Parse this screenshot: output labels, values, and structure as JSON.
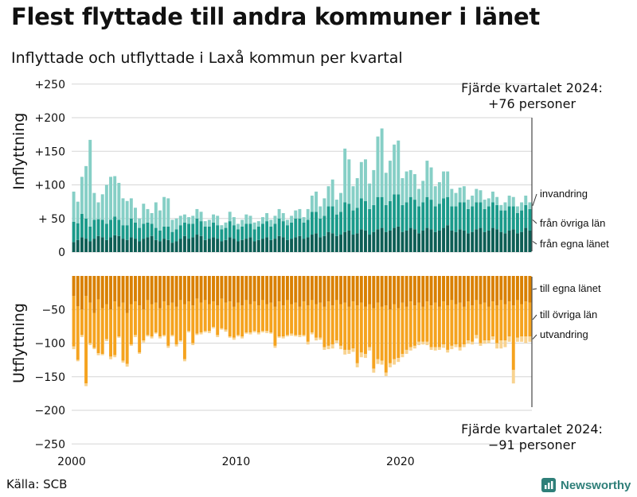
{
  "title": "Flest flyttade till andra kommuner i länet",
  "subtitle": "Inflyttade och utflyttade i Laxå kommun per kvartal",
  "source": "Källa: SCB",
  "brand": "Newsworthy",
  "chart_data": {
    "type": "bar",
    "stacked": true,
    "x_start": 2000,
    "x_interval": "quarter",
    "ylim": [
      -250,
      250
    ],
    "yticks": [
      250,
      200,
      150,
      100,
      50,
      0,
      -50,
      -100,
      -150,
      -200,
      -250
    ],
    "ytick_labels": [
      "+250",
      "+200",
      "+150",
      "+100",
      "+ 50",
      "0",
      "−50",
      "−100",
      "−150",
      "−200",
      "−250"
    ],
    "xticks": [
      2000,
      2010,
      2020
    ],
    "ylabel_top": "Inflyttning",
    "ylabel_bottom": "Utflyttning",
    "annotation_top": [
      "Fjärde kvartalet 2024:",
      "+76 personer"
    ],
    "annotation_bottom": [
      "Fjärde kvartalet 2024:",
      "−91 personer"
    ],
    "in_series": [
      {
        "name": "från egna länet",
        "color": "#0d5e55",
        "values": [
          15,
          18,
          22,
          20,
          16,
          20,
          24,
          22,
          18,
          22,
          25,
          24,
          20,
          18,
          22,
          20,
          16,
          20,
          22,
          24,
          18,
          16,
          20,
          18,
          14,
          16,
          20,
          24,
          20,
          22,
          26,
          24,
          18,
          20,
          22,
          20,
          16,
          18,
          22,
          20,
          16,
          18,
          20,
          22,
          16,
          18,
          20,
          22,
          18,
          20,
          24,
          22,
          18,
          20,
          22,
          24,
          20,
          22,
          26,
          28,
          22,
          24,
          30,
          28,
          24,
          26,
          30,
          32,
          26,
          28,
          34,
          32,
          26,
          30,
          34,
          36,
          30,
          32,
          36,
          38,
          30,
          32,
          36,
          34,
          28,
          32,
          36,
          34,
          30,
          32,
          36,
          40,
          32,
          30,
          34,
          32,
          28,
          30,
          34,
          36,
          30,
          32,
          36,
          34,
          30,
          28,
          32,
          34,
          28,
          30,
          36,
          32
        ]
      },
      {
        "name": "från övriga län",
        "color": "#1a9a8a",
        "values": [
          30,
          25,
          35,
          30,
          22,
          28,
          25,
          26,
          24,
          26,
          28,
          24,
          20,
          22,
          28,
          24,
          20,
          22,
          22,
          18,
          18,
          16,
          18,
          20,
          16,
          18,
          20,
          20,
          22,
          20,
          24,
          22,
          20,
          18,
          22,
          20,
          18,
          18,
          24,
          20,
          18,
          20,
          22,
          20,
          18,
          20,
          22,
          24,
          20,
          22,
          26,
          24,
          22,
          24,
          28,
          26,
          24,
          26,
          34,
          32,
          28,
          30,
          38,
          40,
          32,
          34,
          44,
          40,
          36,
          38,
          46,
          44,
          38,
          40,
          48,
          46,
          40,
          44,
          50,
          48,
          40,
          42,
          46,
          44,
          40,
          42,
          46,
          44,
          38,
          40,
          44,
          42,
          36,
          38,
          40,
          42,
          36,
          38,
          40,
          38,
          34,
          36,
          38,
          36,
          32,
          34,
          36,
          34,
          30,
          32,
          34,
          32
        ]
      },
      {
        "name": "invandring",
        "color": "#86cfc6",
        "values": [
          45,
          32,
          55,
          78,
          129,
          40,
          25,
          38,
          58,
          64,
          60,
          55,
          40,
          36,
          30,
          22,
          14,
          30,
          20,
          16,
          38,
          30,
          44,
          42,
          18,
          16,
          14,
          12,
          10,
          12,
          14,
          14,
          8,
          10,
          12,
          14,
          6,
          8,
          14,
          12,
          8,
          10,
          14,
          12,
          10,
          8,
          10,
          12,
          10,
          12,
          14,
          12,
          8,
          10,
          12,
          14,
          8,
          16,
          24,
          30,
          18,
          26,
          30,
          40,
          22,
          28,
          80,
          66,
          36,
          44,
          54,
          62,
          38,
          52,
          90,
          102,
          48,
          60,
          74,
          80,
          40,
          46,
          40,
          38,
          26,
          32,
          54,
          48,
          30,
          32,
          40,
          38,
          26,
          20,
          22,
          24,
          14,
          16,
          20,
          18,
          14,
          12,
          16,
          12,
          8,
          12,
          16,
          14,
          10,
          12,
          14,
          10
        ]
      }
    ],
    "out_series": [
      {
        "name": "till egna länet",
        "color": "#d98000",
        "values": [
          30,
          45,
          50,
          30,
          40,
          55,
          35,
          48,
          42,
          50,
          38,
          46,
          40,
          55,
          42,
          38,
          44,
          50,
          36,
          42,
          40,
          48,
          38,
          44,
          40,
          46,
          36,
          42,
          38,
          44,
          34,
          40,
          36,
          42,
          38,
          44,
          34,
          40,
          38,
          46,
          40,
          44,
          36,
          42,
          38,
          44,
          36,
          42,
          40,
          46,
          38,
          44,
          36,
          42,
          40,
          46,
          38,
          44,
          36,
          42,
          40,
          46,
          38,
          44,
          36,
          42,
          40,
          46,
          38,
          44,
          40,
          46,
          42,
          48,
          40,
          46,
          44,
          50,
          42,
          48,
          40,
          46,
          38,
          44,
          40,
          46,
          38,
          44,
          40,
          46,
          38,
          44,
          36,
          42,
          40,
          46,
          38,
          44,
          36,
          42,
          40,
          46,
          38,
          44,
          36,
          42,
          38,
          44,
          36,
          42,
          38,
          40
        ]
      },
      {
        "name": "till övriga län",
        "color": "#f5a31f",
        "values": [
          75,
          80,
          38,
          130,
          60,
          52,
          80,
          68,
          52,
          70,
          80,
          44,
          86,
          76,
          60,
          50,
          70,
          46,
          52,
          48,
          44,
          42,
          50,
          60,
          48,
          56,
          60,
          82,
          44,
          56,
          52,
          44,
          46,
          40,
          38,
          44,
          44,
          40,
          52,
          46,
          48,
          46,
          48,
          42,
          44,
          40,
          46,
          40,
          44,
          58,
          52,
          46,
          52,
          44,
          48,
          42,
          50,
          54,
          48,
          50,
          52,
          60,
          66,
          58,
          60,
          62,
          70,
          64,
          70,
          86,
          74,
          70,
          64,
          90,
          84,
          80,
          100,
          80,
          82,
          74,
          76,
          64,
          68,
          60,
          58,
          52,
          60,
          62,
          66,
          60,
          64,
          66,
          68,
          60,
          66,
          56,
          58,
          54,
          52,
          58,
          56,
          50,
          52,
          56,
          60,
          54,
          52,
          96,
          56,
          48,
          52,
          50
        ]
      },
      {
        "name": "utvandring",
        "color": "#f8d390",
        "values": [
          4,
          2,
          3,
          4,
          3,
          2,
          3,
          2,
          3,
          4,
          3,
          2,
          3,
          4,
          2,
          3,
          2,
          3,
          2,
          3,
          2,
          3,
          2,
          3,
          2,
          3,
          2,
          3,
          2,
          3,
          2,
          3,
          2,
          3,
          2,
          3,
          2,
          3,
          2,
          3,
          2,
          3,
          2,
          3,
          2,
          3,
          2,
          3,
          2,
          3,
          2,
          3,
          2,
          3,
          2,
          3,
          2,
          4,
          3,
          4,
          3,
          4,
          5,
          6,
          4,
          5,
          7,
          6,
          5,
          6,
          7,
          6,
          5,
          6,
          7,
          6,
          5,
          6,
          8,
          6,
          5,
          6,
          5,
          4,
          5,
          4,
          5,
          4,
          5,
          4,
          5,
          4,
          5,
          4,
          5,
          4,
          5,
          4,
          5,
          4,
          5,
          4,
          5,
          8,
          12,
          10,
          8,
          20,
          6,
          8,
          10,
          8
        ]
      }
    ],
    "legend": [
      "invandring",
      "från övriga län",
      "från egna länet",
      "till egna länet",
      "till övriga län",
      "utvandring"
    ]
  }
}
